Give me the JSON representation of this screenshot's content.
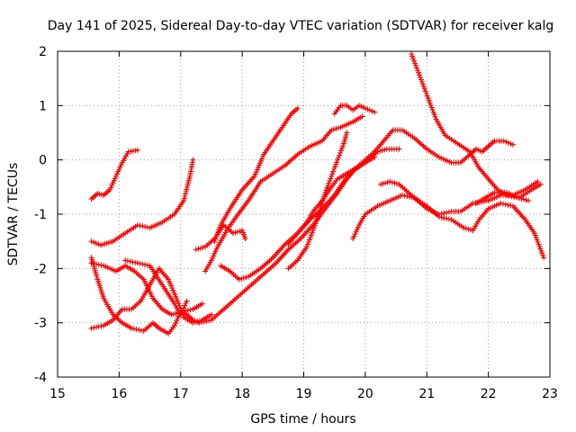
{
  "chart_data": {
    "type": "scatter",
    "title": "Day 141 of 2025, Sidereal Day-to-day VTEC variation (SDTVAR) for receiver kalg",
    "xlabel": "GPS time / hours",
    "ylabel": "SDTVAR / TECUs",
    "xlim": [
      15,
      23
    ],
    "ylim": [
      -4,
      2
    ],
    "xticks": [
      "15",
      "16",
      "17",
      "18",
      "19",
      "20",
      "21",
      "22",
      "23"
    ],
    "yticks": [
      "-4",
      "-3",
      "-2",
      "-1",
      "0",
      "1",
      "2"
    ],
    "grid": true,
    "marker": "+",
    "color": "#ff0000",
    "series": [
      {
        "name": "s1",
        "points": [
          [
            15.55,
            -0.72
          ],
          [
            15.65,
            -0.62
          ],
          [
            15.75,
            -0.65
          ],
          [
            15.85,
            -0.55
          ],
          [
            15.95,
            -0.3
          ],
          [
            16.05,
            -0.05
          ],
          [
            16.15,
            0.15
          ],
          [
            16.3,
            0.18
          ]
        ]
      },
      {
        "name": "s2",
        "points": [
          [
            15.55,
            -1.5
          ],
          [
            15.7,
            -1.57
          ],
          [
            15.9,
            -1.5
          ],
          [
            16.1,
            -1.35
          ],
          [
            16.3,
            -1.2
          ],
          [
            16.5,
            -1.25
          ],
          [
            16.7,
            -1.15
          ],
          [
            16.9,
            -1.0
          ],
          [
            17.05,
            -0.75
          ],
          [
            17.15,
            -0.3
          ],
          [
            17.2,
            0.0
          ]
        ]
      },
      {
        "name": "s3",
        "points": [
          [
            15.55,
            -1.9
          ],
          [
            15.75,
            -1.95
          ],
          [
            15.95,
            -2.05
          ],
          [
            16.1,
            -1.95
          ],
          [
            16.25,
            -2.05
          ],
          [
            16.4,
            -2.2
          ],
          [
            16.55,
            -2.55
          ],
          [
            16.7,
            -2.75
          ],
          [
            16.85,
            -2.85
          ],
          [
            17.0,
            -2.8
          ],
          [
            17.2,
            -2.75
          ],
          [
            17.35,
            -2.65
          ]
        ]
      },
      {
        "name": "s4",
        "points": [
          [
            15.55,
            -3.1
          ],
          [
            15.75,
            -3.05
          ],
          [
            15.9,
            -2.95
          ],
          [
            16.05,
            -2.75
          ],
          [
            16.2,
            -2.75
          ],
          [
            16.35,
            -2.6
          ],
          [
            16.5,
            -2.3
          ],
          [
            16.65,
            -2.0
          ],
          [
            16.8,
            -2.2
          ],
          [
            16.95,
            -2.6
          ],
          [
            17.05,
            -2.9
          ],
          [
            17.2,
            -3.0
          ],
          [
            17.35,
            -2.95
          ],
          [
            17.5,
            -2.85
          ]
        ]
      },
      {
        "name": "s5",
        "points": [
          [
            15.55,
            -1.8
          ],
          [
            15.65,
            -2.2
          ],
          [
            15.75,
            -2.55
          ],
          [
            15.9,
            -2.85
          ],
          [
            16.05,
            -3.0
          ],
          [
            16.2,
            -3.1
          ],
          [
            16.4,
            -3.15
          ],
          [
            16.55,
            -3.0
          ],
          [
            16.65,
            -3.1
          ],
          [
            16.8,
            -3.2
          ],
          [
            16.9,
            -3.05
          ],
          [
            17.0,
            -2.8
          ],
          [
            17.1,
            -2.85
          ],
          [
            17.2,
            -2.95
          ],
          [
            17.3,
            -3.0
          ],
          [
            17.5,
            -2.95
          ],
          [
            17.65,
            -2.8
          ],
          [
            17.85,
            -2.6
          ],
          [
            18.0,
            -2.45
          ],
          [
            18.15,
            -2.3
          ],
          [
            18.35,
            -2.1
          ],
          [
            18.55,
            -1.9
          ],
          [
            18.75,
            -1.65
          ],
          [
            18.95,
            -1.45
          ],
          [
            19.15,
            -1.2
          ],
          [
            19.35,
            -0.9
          ],
          [
            19.55,
            -0.6
          ],
          [
            19.7,
            -0.35
          ],
          [
            19.85,
            -0.15
          ],
          [
            20.0,
            0.0
          ],
          [
            20.15,
            0.15
          ],
          [
            20.3,
            0.35
          ],
          [
            20.45,
            0.55
          ],
          [
            20.6,
            0.55
          ],
          [
            20.8,
            0.4
          ],
          [
            21.0,
            0.2
          ],
          [
            21.2,
            0.05
          ],
          [
            21.4,
            -0.05
          ],
          [
            21.55,
            -0.05
          ],
          [
            21.7,
            0.1
          ],
          [
            21.8,
            0.2
          ],
          [
            21.9,
            0.15
          ],
          [
            22.0,
            0.25
          ],
          [
            22.1,
            0.35
          ],
          [
            22.25,
            0.35
          ],
          [
            22.4,
            0.28
          ]
        ]
      },
      {
        "name": "s6",
        "points": [
          [
            16.1,
            -1.85
          ],
          [
            16.3,
            -1.9
          ],
          [
            16.5,
            -1.95
          ],
          [
            16.7,
            -2.3
          ],
          [
            16.9,
            -2.65
          ],
          [
            17.0,
            -2.85
          ],
          [
            17.1,
            -2.6
          ]
        ]
      },
      {
        "name": "s7",
        "points": [
          [
            17.25,
            -1.65
          ],
          [
            17.4,
            -1.6
          ],
          [
            17.55,
            -1.45
          ],
          [
            17.7,
            -1.2
          ],
          [
            17.85,
            -1.35
          ],
          [
            18.0,
            -1.3
          ],
          [
            18.05,
            -1.45
          ]
        ]
      },
      {
        "name": "s8",
        "points": [
          [
            17.4,
            -2.05
          ],
          [
            17.5,
            -1.85
          ],
          [
            17.6,
            -1.6
          ],
          [
            17.75,
            -1.3
          ],
          [
            17.9,
            -1.05
          ],
          [
            18.1,
            -0.75
          ],
          [
            18.3,
            -0.4
          ],
          [
            18.5,
            -0.25
          ],
          [
            18.7,
            -0.1
          ],
          [
            18.9,
            0.1
          ],
          [
            19.1,
            0.25
          ],
          [
            19.3,
            0.35
          ],
          [
            19.45,
            0.55
          ],
          [
            19.6,
            0.6
          ],
          [
            19.8,
            0.7
          ],
          [
            19.95,
            0.8
          ]
        ]
      },
      {
        "name": "s9",
        "points": [
          [
            17.65,
            -1.95
          ],
          [
            17.8,
            -2.05
          ],
          [
            17.95,
            -2.2
          ],
          [
            18.1,
            -2.15
          ],
          [
            18.3,
            -2.0
          ],
          [
            18.5,
            -1.8
          ],
          [
            18.7,
            -1.55
          ],
          [
            18.9,
            -1.35
          ],
          [
            19.1,
            -1.1
          ],
          [
            19.3,
            -0.9
          ],
          [
            19.5,
            -0.65
          ],
          [
            19.65,
            -0.4
          ],
          [
            19.8,
            -0.2
          ],
          [
            20.0,
            -0.05
          ],
          [
            20.2,
            0.15
          ],
          [
            20.35,
            0.2
          ],
          [
            20.55,
            0.2
          ]
        ]
      },
      {
        "name": "s10",
        "points": [
          [
            17.55,
            -1.5
          ],
          [
            17.65,
            -1.2
          ],
          [
            17.8,
            -0.9
          ],
          [
            18.0,
            -0.55
          ],
          [
            18.2,
            -0.3
          ],
          [
            18.35,
            0.1
          ],
          [
            18.5,
            0.35
          ],
          [
            18.65,
            0.6
          ],
          [
            18.8,
            0.85
          ],
          [
            18.9,
            0.95
          ]
        ]
      },
      {
        "name": "s11",
        "points": [
          [
            18.75,
            -2.0
          ],
          [
            18.9,
            -1.85
          ],
          [
            19.05,
            -1.6
          ],
          [
            19.15,
            -1.3
          ],
          [
            19.25,
            -1.0
          ],
          [
            19.35,
            -0.6
          ],
          [
            19.45,
            -0.3
          ],
          [
            19.55,
            0.0
          ],
          [
            19.65,
            0.3
          ],
          [
            19.7,
            0.5
          ]
        ]
      },
      {
        "name": "s12",
        "points": [
          [
            18.75,
            -1.55
          ],
          [
            18.9,
            -1.35
          ],
          [
            19.05,
            -1.15
          ],
          [
            19.15,
            -0.95
          ],
          [
            19.3,
            -0.75
          ],
          [
            19.45,
            -0.5
          ],
          [
            19.55,
            -0.35
          ],
          [
            19.7,
            -0.25
          ],
          [
            19.85,
            -0.15
          ],
          [
            20.0,
            -0.05
          ],
          [
            20.15,
            0.05
          ]
        ]
      },
      {
        "name": "s13",
        "points": [
          [
            19.5,
            0.85
          ],
          [
            19.6,
            1.0
          ],
          [
            19.7,
            1.0
          ],
          [
            19.8,
            0.92
          ],
          [
            19.9,
            1.0
          ],
          [
            20.0,
            0.95
          ],
          [
            20.15,
            0.88
          ]
        ]
      },
      {
        "name": "s14",
        "points": [
          [
            19.8,
            -1.45
          ],
          [
            19.9,
            -1.2
          ],
          [
            20.0,
            -1.0
          ],
          [
            20.2,
            -0.85
          ],
          [
            20.4,
            -0.75
          ],
          [
            20.6,
            -0.65
          ],
          [
            20.8,
            -0.7
          ],
          [
            21.0,
            -0.85
          ],
          [
            21.2,
            -1.05
          ],
          [
            21.4,
            -1.1
          ],
          [
            21.6,
            -1.25
          ],
          [
            21.75,
            -1.3
          ],
          [
            21.85,
            -1.1
          ],
          [
            22.0,
            -0.9
          ],
          [
            22.2,
            -0.8
          ],
          [
            22.4,
            -0.85
          ],
          [
            22.6,
            -1.1
          ],
          [
            22.75,
            -1.35
          ],
          [
            22.9,
            -1.8
          ]
        ]
      },
      {
        "name": "s15",
        "points": [
          [
            20.25,
            -0.45
          ],
          [
            20.4,
            -0.4
          ],
          [
            20.55,
            -0.45
          ],
          [
            20.7,
            -0.6
          ],
          [
            20.85,
            -0.75
          ],
          [
            21.0,
            -0.9
          ],
          [
            21.2,
            -1.0
          ],
          [
            21.4,
            -0.95
          ],
          [
            21.55,
            -0.95
          ],
          [
            21.75,
            -0.8
          ],
          [
            22.0,
            -0.75
          ],
          [
            22.2,
            -0.65
          ],
          [
            22.4,
            -0.65
          ],
          [
            22.6,
            -0.55
          ],
          [
            22.8,
            -0.4
          ]
        ]
      },
      {
        "name": "s16",
        "points": [
          [
            20.75,
            1.95
          ],
          [
            20.85,
            1.65
          ],
          [
            20.95,
            1.35
          ],
          [
            21.05,
            1.05
          ],
          [
            21.15,
            0.75
          ],
          [
            21.3,
            0.45
          ],
          [
            21.5,
            0.3
          ],
          [
            21.7,
            0.15
          ],
          [
            21.85,
            -0.15
          ],
          [
            22.0,
            -0.35
          ],
          [
            22.15,
            -0.55
          ],
          [
            22.3,
            -0.65
          ],
          [
            22.5,
            -0.7
          ],
          [
            22.7,
            -0.55
          ],
          [
            22.85,
            -0.45
          ]
        ]
      },
      {
        "name": "s17",
        "points": [
          [
            21.8,
            -0.8
          ],
          [
            21.95,
            -0.7
          ],
          [
            22.1,
            -0.6
          ],
          [
            22.3,
            -0.6
          ],
          [
            22.5,
            -0.7
          ],
          [
            22.65,
            -0.75
          ]
        ]
      }
    ]
  }
}
